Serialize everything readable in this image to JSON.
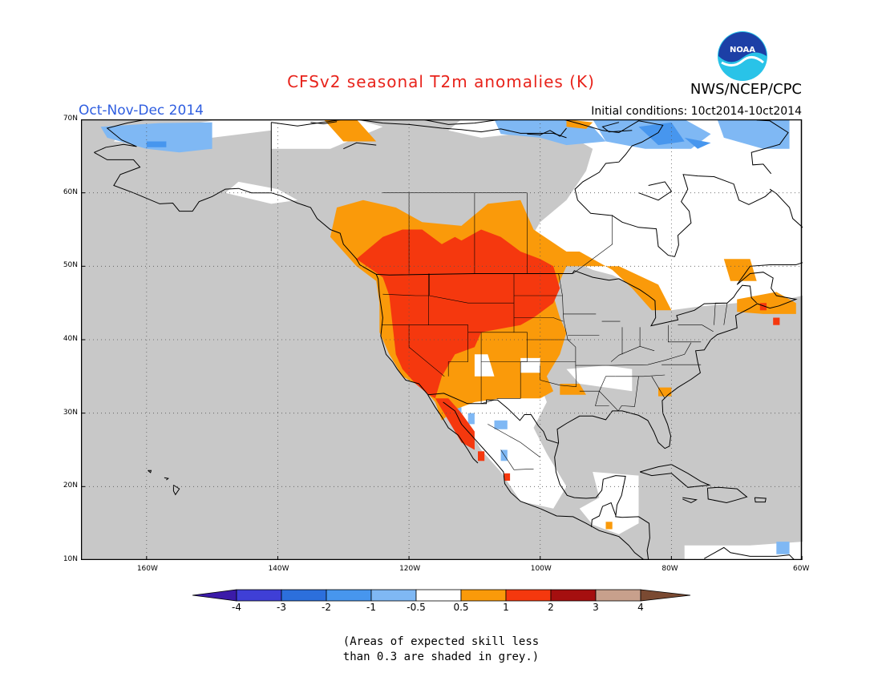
{
  "header": {
    "title": "CFSv2 seasonal T2m anomalies (K)",
    "period": "Oct-Nov-Dec 2014",
    "agency": "NWS/NCEP/CPC",
    "initial_conditions": "Initial conditions: 10ct2014-10ct2014",
    "logo_text": "NOAA"
  },
  "map": {
    "lat_labels": [
      "70N",
      "60N",
      "50N",
      "40N",
      "30N",
      "20N",
      "10N"
    ],
    "lon_labels": [
      "160W",
      "140W",
      "120W",
      "100W",
      "80W",
      "60W"
    ],
    "extent": {
      "lon_min": -170,
      "lon_max": -60,
      "lat_min": 10,
      "lat_max": 70
    },
    "land_color": "#c8c8c8",
    "ocean_color": "#c8c8c8"
  },
  "legend": {
    "labels": [
      "-4",
      "-3",
      "-2",
      "-1",
      "-0.5",
      "0.5",
      "1",
      "2",
      "3",
      "4"
    ],
    "colors": [
      "#3b1ba8",
      "#3f3fd6",
      "#2c6fdc",
      "#4796ee",
      "#7fb8f4",
      "#ffffff",
      "#fa9a0a",
      "#f5380e",
      "#a50f0f",
      "#c8a08c",
      "#7a4a32"
    ]
  },
  "note": {
    "line1": "(Areas of expected skill less",
    "line2": "than 0.3 are shaded in grey.)"
  }
}
